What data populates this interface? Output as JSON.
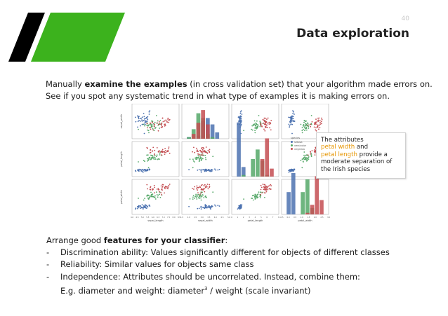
{
  "slide": {
    "page_number": "40",
    "title": "Data exploration",
    "brand_colors": {
      "black": "#000000",
      "green": "#3cb21d"
    }
  },
  "intro": {
    "line1_pre": "Manually ",
    "line1_bold": "examine the examples",
    "line1_post": " (in cross validation set) that your algorithm made errors on.",
    "line2": "See if you spot any systematic trend in what type of examples it is making errors on."
  },
  "chart_data": {
    "type": "scatter",
    "title": "",
    "variables": [
      "sepal_length",
      "sepal_width",
      "petal_length",
      "petal_width"
    ],
    "legend": {
      "title": "species",
      "position": "right",
      "items": [
        {
          "name": "setosa",
          "color": "#4c72b0"
        },
        {
          "name": "versicolor",
          "color": "#55a868"
        },
        {
          "name": "virginica",
          "color": "#c44e52"
        }
      ]
    },
    "axes_ranges": {
      "sepal_length": [
        4.0,
        8.5
      ],
      "sepal_width": [
        1.5,
        5.0
      ],
      "petal_length": [
        0,
        8
      ],
      "petal_width": [
        -0.5,
        3.0
      ]
    },
    "x_tick_labels": {
      "sepal_length": [
        "4.0",
        "4.5",
        "5.0",
        "5.5",
        "6.0",
        "6.5",
        "7.0",
        "7.5",
        "8.0",
        "8.5"
      ],
      "sepal_width": [
        "1.5",
        "2.0",
        "2.5",
        "3.0",
        "3.5",
        "4.0",
        "4.5",
        "5.0"
      ],
      "petal_length": [
        "0",
        "1",
        "2",
        "3",
        "4",
        "5",
        "6",
        "7",
        "8"
      ],
      "petal_width": [
        "-0.5",
        "0.0",
        "0.5",
        "1.0",
        "1.5",
        "2.0",
        "2.5",
        "3.0"
      ]
    },
    "species_stats": [
      {
        "name": "setosa",
        "means": [
          5.01,
          3.43,
          1.46,
          0.25
        ],
        "sds": [
          0.35,
          0.38,
          0.17,
          0.11
        ]
      },
      {
        "name": "versicolor",
        "means": [
          5.94,
          2.77,
          4.26,
          1.33
        ],
        "sds": [
          0.52,
          0.31,
          0.47,
          0.2
        ]
      },
      {
        "name": "virginica",
        "means": [
          6.59,
          2.97,
          5.55,
          2.03
        ],
        "sds": [
          0.64,
          0.32,
          0.55,
          0.27
        ]
      }
    ],
    "grid": false
  },
  "callout": {
    "line1": "The attributes",
    "petal_width": "petal width",
    "and": " and",
    "petal_length": "petal length",
    "provide": " provide a",
    "line4": "moderate separation of",
    "line5": "the Irish species"
  },
  "features": {
    "heading_pre": "Arrange good ",
    "heading_bold": "features for your classifier",
    "heading_post": ":",
    "dash": "-",
    "items": [
      "Discrimination ability: Values significantly different for objects of different classes",
      "Reliability: Similar values for objects same class",
      "Independence: Attributes should be uncorrelated. Instead, combine them:"
    ],
    "sub_pre": "E.g. diameter and weight: diameter",
    "sub_sup": "3",
    "sub_post": " / weight (scale invariant)"
  }
}
